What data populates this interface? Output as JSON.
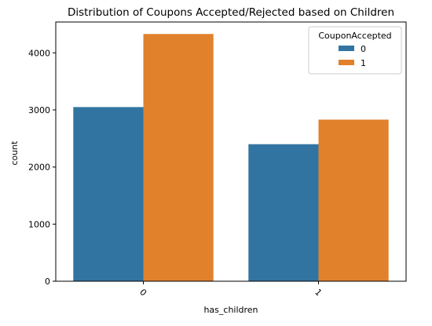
{
  "chart_data": {
    "type": "bar",
    "title": "Distribution of Coupons Accepted/Rejected based on Children",
    "xlabel": "has_children",
    "ylabel": "count",
    "categories": [
      "0",
      "1"
    ],
    "series": [
      {
        "name": "0",
        "values": [
          3050,
          2400
        ],
        "color": "#3274a1"
      },
      {
        "name": "1",
        "values": [
          4330,
          2830
        ],
        "color": "#e1812c"
      }
    ],
    "ylim": [
      0,
      4540
    ],
    "yticks": [
      0,
      1000,
      2000,
      3000,
      4000
    ],
    "legend": {
      "title": "CouponAccepted",
      "placement": "top-right"
    },
    "grid": false,
    "x_tick_rotation": 45
  }
}
